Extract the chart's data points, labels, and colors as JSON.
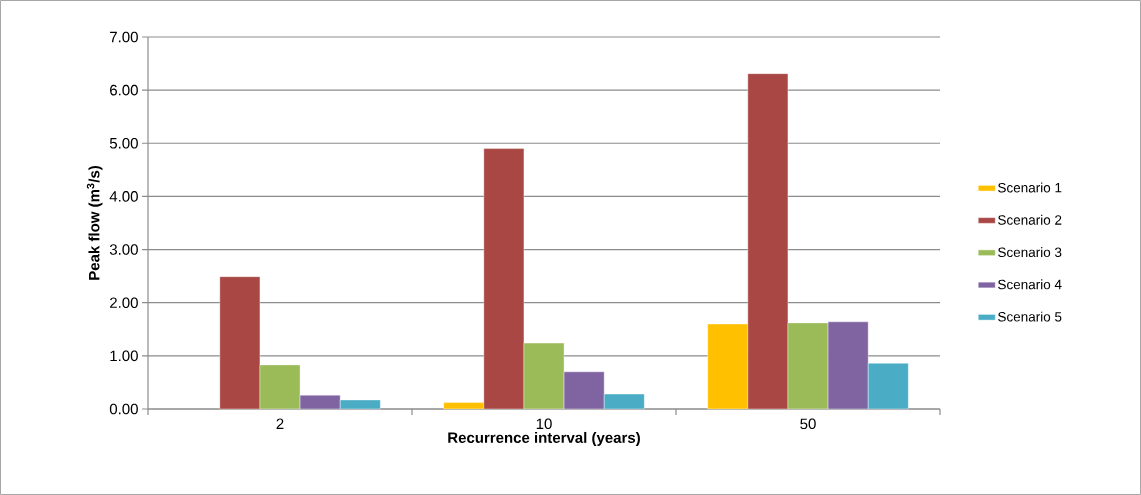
{
  "chart_data": {
    "type": "bar",
    "xlabel": "Recurrence interval (years)",
    "ylabel": "Peak flow (m$^{3}$/s)",
    "categories": [
      "2",
      "10",
      "50"
    ],
    "series": [
      {
        "name": "Scenario 1",
        "color": "#ffc000",
        "values": [
          null,
          0.12,
          1.6
        ]
      },
      {
        "name": "Scenario 2",
        "color": "#a94744",
        "values": [
          2.49,
          4.9,
          6.31
        ]
      },
      {
        "name": "Scenario 3",
        "color": "#9bbb59",
        "values": [
          0.83,
          1.24,
          1.62
        ]
      },
      {
        "name": "Scenario 4",
        "color": "#8064a2",
        "values": [
          0.26,
          0.7,
          1.64
        ]
      },
      {
        "name": "Scenario 5",
        "color": "#4bacc6",
        "values": [
          0.17,
          0.28,
          0.86
        ]
      }
    ],
    "ylim": [
      0,
      7
    ],
    "yticks": [
      {
        "value": 0,
        "label": "0.00"
      },
      {
        "value": 1,
        "label": "1.00"
      },
      {
        "value": 2,
        "label": "2.00"
      },
      {
        "value": 3,
        "label": "3.00"
      },
      {
        "value": 4,
        "label": "4.00"
      },
      {
        "value": 5,
        "label": "5.00"
      },
      {
        "value": 6,
        "label": "6.00"
      },
      {
        "value": 7,
        "label": "7.00"
      }
    ],
    "grid": "y",
    "legend": "right"
  }
}
